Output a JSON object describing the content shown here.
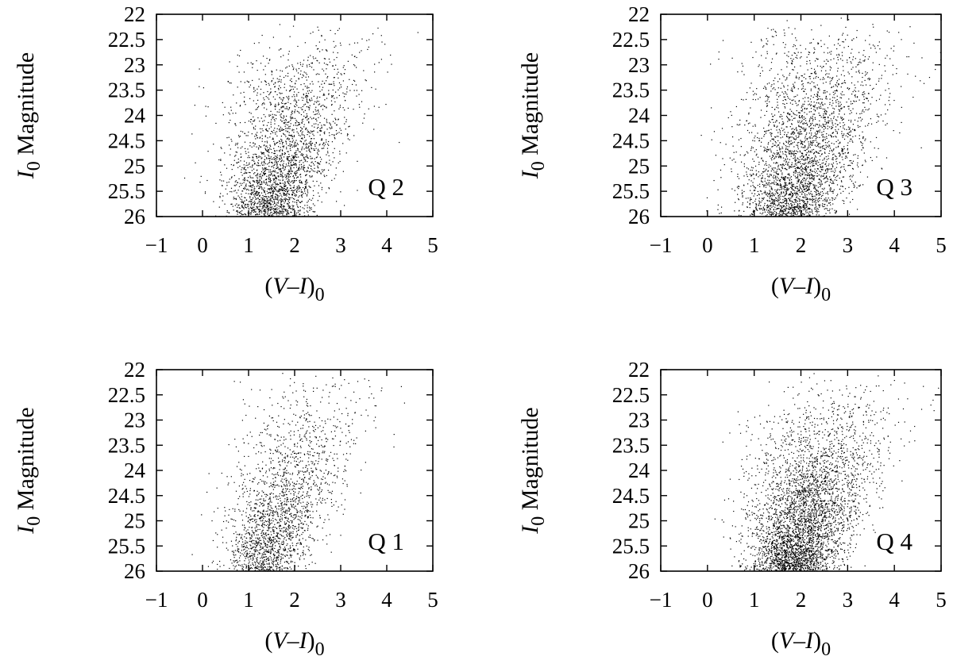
{
  "chart_data": [
    {
      "type": "scatter",
      "panel_label": "Q 2",
      "xlabel_parts": [
        "(",
        "V",
        "–",
        "I",
        ")",
        "0"
      ],
      "ylabel_parts": [
        "I",
        "0",
        " Magnitude"
      ],
      "xlim": [
        -1,
        5
      ],
      "ylim": [
        26,
        22
      ],
      "y_axis_inverted": true,
      "xticks": [
        -1,
        0,
        1,
        2,
        3,
        4,
        5
      ],
      "xtick_labels": [
        "−1",
        "0",
        "1",
        "2",
        "3",
        "4",
        "5"
      ],
      "yticks": [
        22,
        22.5,
        23,
        23.5,
        24,
        24.5,
        25,
        25.5,
        26
      ],
      "ytick_labels": [
        "22",
        "22.5",
        "23",
        "23.5",
        "24",
        "24.5",
        "25",
        "25.5",
        "26"
      ],
      "grid": false,
      "marker_color": "#000000",
      "distribution": {
        "approx_points": 2600,
        "seed": 11,
        "core_vi_at_faint": 1.4,
        "core_vi_at_bright": 2.6,
        "spread_vi": 0.55,
        "faint_weight": 2.2
      }
    },
    {
      "type": "scatter",
      "panel_label": "Q 3",
      "xlabel_parts": [
        "(",
        "V",
        "–",
        "I",
        ")",
        "0"
      ],
      "ylabel_parts": [
        "I",
        "0",
        " Magnitude"
      ],
      "xlim": [
        -1,
        5
      ],
      "ylim": [
        26,
        22
      ],
      "y_axis_inverted": true,
      "xticks": [
        -1,
        0,
        1,
        2,
        3,
        4,
        5
      ],
      "xtick_labels": [
        "−1",
        "0",
        "1",
        "2",
        "3",
        "4",
        "5"
      ],
      "yticks": [
        22,
        22.5,
        23,
        23.5,
        24,
        24.5,
        25,
        25.5,
        26
      ],
      "ytick_labels": [
        "22",
        "22.5",
        "23",
        "23.5",
        "24",
        "24.5",
        "25",
        "25.5",
        "26"
      ],
      "grid": false,
      "marker_color": "#000000",
      "distribution": {
        "approx_points": 3000,
        "seed": 23,
        "core_vi_at_faint": 1.7,
        "core_vi_at_bright": 2.8,
        "spread_vi": 0.6,
        "faint_weight": 2.0
      }
    },
    {
      "type": "scatter",
      "panel_label": "Q 1",
      "xlabel_parts": [
        "(",
        "V",
        "–",
        "I",
        ")",
        "0"
      ],
      "ylabel_parts": [
        "I",
        "0",
        " Magnitude"
      ],
      "xlim": [
        -1,
        5
      ],
      "ylim": [
        26,
        22
      ],
      "y_axis_inverted": true,
      "xticks": [
        -1,
        0,
        1,
        2,
        3,
        4,
        5
      ],
      "xtick_labels": [
        "−1",
        "0",
        "1",
        "2",
        "3",
        "4",
        "5"
      ],
      "yticks": [
        22,
        22.5,
        23,
        23.5,
        24,
        24.5,
        25,
        25.5,
        26
      ],
      "ytick_labels": [
        "22",
        "22.5",
        "23",
        "23.5",
        "24",
        "24.5",
        "25",
        "25.5",
        "26"
      ],
      "grid": false,
      "marker_color": "#000000",
      "distribution": {
        "approx_points": 2000,
        "seed": 37,
        "core_vi_at_faint": 1.3,
        "core_vi_at_bright": 2.6,
        "spread_vi": 0.5,
        "faint_weight": 2.0
      }
    },
    {
      "type": "scatter",
      "panel_label": "Q 4",
      "xlabel_parts": [
        "(",
        "V",
        "–",
        "I",
        ")",
        "0"
      ],
      "ylabel_parts": [
        "I",
        "0",
        " Magnitude"
      ],
      "xlim": [
        -1,
        5
      ],
      "ylim": [
        26,
        22
      ],
      "y_axis_inverted": true,
      "xticks": [
        -1,
        0,
        1,
        2,
        3,
        4,
        5
      ],
      "xtick_labels": [
        "−1",
        "0",
        "1",
        "2",
        "3",
        "4",
        "5"
      ],
      "yticks": [
        22,
        22.5,
        23,
        23.5,
        24,
        24.5,
        25,
        25.5,
        26
      ],
      "ytick_labels": [
        "22",
        "22.5",
        "23",
        "23.5",
        "24",
        "24.5",
        "25",
        "25.5",
        "26"
      ],
      "grid": false,
      "marker_color": "#000000",
      "distribution": {
        "approx_points": 3800,
        "seed": 53,
        "core_vi_at_faint": 1.8,
        "core_vi_at_bright": 2.9,
        "spread_vi": 0.55,
        "faint_weight": 2.3
      }
    }
  ]
}
